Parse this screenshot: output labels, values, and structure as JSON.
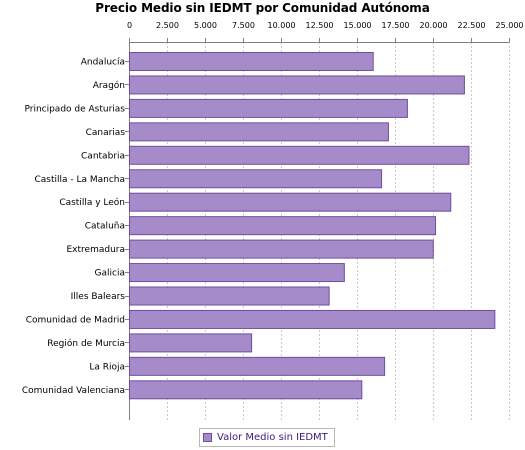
{
  "title": "Precio Medio sin IEDMT por Comunidad Autónoma",
  "colors": {
    "bar_fill": "#a58bc9",
    "bar_stroke": "#6f4f9c",
    "grid": "#c8c8c8",
    "axis": "#808080",
    "text": "#000000",
    "legend_text": "#3c1d7a"
  },
  "chart_data": {
    "type": "bar",
    "orientation": "horizontal",
    "title": "Precio Medio sin IEDMT por Comunidad Autónoma",
    "xlabel": "",
    "ylabel": "",
    "xlim": [
      0,
      25000
    ],
    "tick_values": [
      0,
      2500,
      5000,
      7500,
      10000,
      12500,
      15000,
      17500,
      20000,
      22500,
      25000
    ],
    "tick_labels": [
      "0",
      "2.500",
      "5.000",
      "7.500",
      "10.000",
      "12.500",
      "15.000",
      "17.500",
      "20.000",
      "22.500",
      "25.000"
    ],
    "tick_axis_position": "top",
    "grid": true,
    "legend_position": "bottom",
    "categories": [
      "Andalucía",
      "Aragón",
      "Principado de Asturias",
      "Canarias",
      "Cantabria",
      "Castilla - La Mancha",
      "Castilla y León",
      "Cataluña",
      "Extremadura",
      "Galicia",
      "Illes Balears",
      "Comunidad de Madrid",
      "Región de Murcia",
      "La Rioja",
      "Comunidad Valenciana"
    ],
    "series": [
      {
        "name": "Valor Medio sin IEDMT",
        "values": [
          16100,
          22100,
          18350,
          17100,
          22400,
          16650,
          21200,
          20200,
          20050,
          14200,
          13200,
          24100,
          8100,
          16850,
          15350
        ]
      }
    ]
  }
}
